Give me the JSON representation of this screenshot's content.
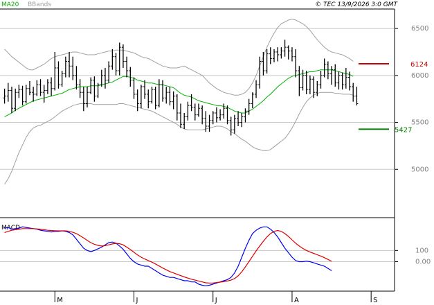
{
  "header": {
    "ma_label": "MA20",
    "bb_label": "BBands",
    "copyright": "© TEC 13/9/2026 3:0 GMT"
  },
  "colors": {
    "background": "#ffffff",
    "axis": "#000000",
    "grid": "#c8c8c8",
    "price_bars": "#000000",
    "ma20": "#00b000",
    "bbands": "#a0a0a0",
    "resistance": "#cc0000",
    "support": "#008000",
    "macd": "#0000ee",
    "signal": "#dd0000"
  },
  "chart_data": [
    {
      "type": "ohlc",
      "panel": "price",
      "ylim": [
        4500,
        6700
      ],
      "y_ticks": [
        5000,
        5500,
        6000,
        6500
      ],
      "y_tick_labels": [
        "5000",
        "5500",
        "6000",
        "6500"
      ],
      "x_ticks": [
        "M",
        "J",
        "J",
        "A",
        "S"
      ],
      "x_tick_index": [
        14,
        36,
        58,
        80,
        102
      ],
      "levels": [
        {
          "label": "6124",
          "value": 6124,
          "role": "resistance"
        },
        {
          "label": "5427",
          "value": 5427,
          "role": "support"
        }
      ],
      "bars": [
        [
          5760,
          5860,
          5700,
          5780
        ],
        [
          5780,
          5920,
          5720,
          5840
        ],
        [
          5840,
          5880,
          5600,
          5650
        ],
        [
          5650,
          5860,
          5620,
          5820
        ],
        [
          5820,
          5900,
          5760,
          5850
        ],
        [
          5850,
          5890,
          5680,
          5720
        ],
        [
          5720,
          5900,
          5700,
          5860
        ],
        [
          5860,
          5940,
          5790,
          5820
        ],
        [
          5820,
          5880,
          5720,
          5800
        ],
        [
          5800,
          5950,
          5780,
          5900
        ],
        [
          5900,
          5960,
          5780,
          5820
        ],
        [
          5820,
          5900,
          5710,
          5840
        ],
        [
          5840,
          5960,
          5800,
          5920
        ],
        [
          5920,
          5980,
          5780,
          5860
        ],
        [
          5860,
          6250,
          5840,
          6080
        ],
        [
          6080,
          6150,
          5860,
          5900
        ],
        [
          5900,
          6050,
          5880,
          6020
        ],
        [
          6020,
          6200,
          5980,
          6150
        ],
        [
          6150,
          6250,
          5980,
          6100
        ],
        [
          6100,
          6200,
          5950,
          6000
        ],
        [
          6000,
          6100,
          5850,
          5900
        ],
        [
          5900,
          5960,
          5760,
          5820
        ],
        [
          5820,
          5880,
          5620,
          5700
        ],
        [
          5700,
          5880,
          5660,
          5820
        ],
        [
          5820,
          5980,
          5800,
          5950
        ],
        [
          5950,
          5990,
          5720,
          5780
        ],
        [
          5780,
          5920,
          5760,
          5900
        ],
        [
          5900,
          6060,
          5880,
          6000
        ],
        [
          6000,
          6080,
          5860,
          5950
        ],
        [
          5950,
          6150,
          5920,
          6100
        ],
        [
          6100,
          6280,
          6060,
          6200
        ],
        [
          6200,
          6240,
          6000,
          6050
        ],
        [
          6050,
          6350,
          6000,
          6300
        ],
        [
          6300,
          6330,
          6080,
          6150
        ],
        [
          6150,
          6200,
          5980,
          6050
        ],
        [
          6050,
          6090,
          5880,
          5950
        ],
        [
          5950,
          5980,
          5750,
          5800
        ],
        [
          5800,
          5850,
          5620,
          5700
        ],
        [
          5700,
          5900,
          5650,
          5880
        ],
        [
          5880,
          5950,
          5750,
          5800
        ],
        [
          5800,
          5850,
          5650,
          5720
        ],
        [
          5720,
          5880,
          5700,
          5850
        ],
        [
          5850,
          5880,
          5640,
          5680
        ],
        [
          5680,
          5960,
          5660,
          5900
        ],
        [
          5900,
          5950,
          5720,
          5760
        ],
        [
          5760,
          5880,
          5700,
          5820
        ],
        [
          5820,
          5880,
          5680,
          5720
        ],
        [
          5720,
          5830,
          5640,
          5780
        ],
        [
          5780,
          5800,
          5520,
          5600
        ],
        [
          5600,
          5700,
          5440,
          5480
        ],
        [
          5480,
          5600,
          5430,
          5560
        ],
        [
          5560,
          5720,
          5520,
          5680
        ],
        [
          5680,
          5800,
          5620,
          5660
        ],
        [
          5660,
          5700,
          5520,
          5580
        ],
        [
          5580,
          5700,
          5560,
          5650
        ],
        [
          5650,
          5680,
          5480,
          5540
        ],
        [
          5540,
          5620,
          5400,
          5460
        ],
        [
          5460,
          5580,
          5400,
          5520
        ],
        [
          5520,
          5620,
          5480,
          5600
        ],
        [
          5600,
          5660,
          5500,
          5550
        ],
        [
          5550,
          5640,
          5520,
          5580
        ],
        [
          5580,
          5700,
          5540,
          5650
        ],
        [
          5650,
          5680,
          5480,
          5520
        ],
        [
          5520,
          5560,
          5360,
          5420
        ],
        [
          5420,
          5580,
          5380,
          5540
        ],
        [
          5540,
          5620,
          5460,
          5500
        ],
        [
          5500,
          5600,
          5450,
          5560
        ],
        [
          5560,
          5650,
          5500,
          5620
        ],
        [
          5620,
          5750,
          5580,
          5700
        ],
        [
          5700,
          5820,
          5650,
          5800
        ],
        [
          5800,
          5950,
          5760,
          5900
        ],
        [
          5900,
          6200,
          5860,
          6150
        ],
        [
          6150,
          6250,
          6000,
          6050
        ],
        [
          6050,
          6280,
          6020,
          6230
        ],
        [
          6230,
          6300,
          6120,
          6180
        ],
        [
          6180,
          6280,
          6140,
          6250
        ],
        [
          6250,
          6300,
          6150,
          6220
        ],
        [
          6220,
          6300,
          6180,
          6260
        ],
        [
          6260,
          6380,
          6200,
          6300
        ],
        [
          6300,
          6320,
          6170,
          6260
        ],
        [
          6260,
          6300,
          6150,
          6200
        ],
        [
          6200,
          6280,
          5980,
          6050
        ],
        [
          6050,
          6100,
          5780,
          5870
        ],
        [
          5870,
          6060,
          5840,
          6000
        ],
        [
          6000,
          6050,
          5800,
          5850
        ],
        [
          5850,
          6000,
          5800,
          5960
        ],
        [
          5960,
          5990,
          5760,
          5820
        ],
        [
          5820,
          5940,
          5780,
          5900
        ],
        [
          5900,
          6050,
          5860,
          6000
        ],
        [
          6000,
          6180,
          5980,
          6120
        ],
        [
          6120,
          6150,
          5960,
          6020
        ],
        [
          6020,
          6100,
          5900,
          6060
        ],
        [
          6060,
          6120,
          5880,
          5920
        ],
        [
          5920,
          6040,
          5850,
          6000
        ],
        [
          6000,
          6030,
          5850,
          5900
        ],
        [
          5900,
          6080,
          5860,
          5980
        ],
        [
          5980,
          6040,
          5840,
          5880
        ],
        [
          5880,
          5920,
          5720,
          5780
        ],
        [
          5780,
          5880,
          5680,
          5700
        ]
      ],
      "ma20": [
        5560,
        5580,
        5600,
        5630,
        5650,
        5670,
        5690,
        5710,
        5730,
        5740,
        5750,
        5760,
        5770,
        5780,
        5790,
        5800,
        5810,
        5830,
        5850,
        5860,
        5870,
        5880,
        5880,
        5880,
        5890,
        5890,
        5890,
        5900,
        5910,
        5920,
        5930,
        5950,
        5970,
        5990,
        5990,
        5980,
        5970,
        5950,
        5940,
        5930,
        5920,
        5920,
        5910,
        5900,
        5900,
        5890,
        5880,
        5870,
        5840,
        5810,
        5790,
        5780,
        5770,
        5750,
        5730,
        5720,
        5710,
        5700,
        5690,
        5680,
        5680,
        5670,
        5660,
        5640,
        5620,
        5610,
        5600,
        5600,
        5620,
        5640,
        5670,
        5700,
        5730,
        5770,
        5800,
        5840,
        5880,
        5910,
        5940,
        5970,
        5990,
        6000,
        6010,
        6020,
        6030,
        6040,
        6040,
        6050,
        6060,
        6060,
        6060,
        6060,
        6050,
        6040,
        6030,
        6020,
        6010,
        5990
      ],
      "bb_upper": [
        6280,
        6240,
        6200,
        6170,
        6140,
        6110,
        6080,
        6060,
        6060,
        6080,
        6100,
        6120,
        6150,
        6180,
        6200,
        6210,
        6220,
        6230,
        6240,
        6250,
        6250,
        6240,
        6230,
        6220,
        6220,
        6220,
        6230,
        6240,
        6250,
        6260,
        6260,
        6270,
        6270,
        6270,
        6260,
        6250,
        6240,
        6220,
        6200,
        6190,
        6180,
        6160,
        6140,
        6120,
        6100,
        6090,
        6080,
        6080,
        6080,
        6090,
        6100,
        6080,
        6060,
        6040,
        6020,
        6000,
        5960,
        5920,
        5890,
        5860,
        5840,
        5820,
        5810,
        5800,
        5790,
        5790,
        5800,
        5820,
        5860,
        5920,
        6000,
        6100,
        6200,
        6300,
        6380,
        6450,
        6510,
        6550,
        6570,
        6590,
        6600,
        6590,
        6570,
        6550,
        6520,
        6480,
        6430,
        6380,
        6340,
        6300,
        6270,
        6250,
        6240,
        6230,
        6220,
        6200,
        6180,
        6150
      ],
      "bb_lower": [
        4840,
        4900,
        4980,
        5080,
        5180,
        5260,
        5340,
        5400,
        5440,
        5460,
        5470,
        5490,
        5510,
        5530,
        5560,
        5590,
        5620,
        5640,
        5660,
        5680,
        5690,
        5700,
        5700,
        5700,
        5700,
        5690,
        5690,
        5690,
        5690,
        5690,
        5690,
        5690,
        5700,
        5700,
        5690,
        5680,
        5670,
        5660,
        5650,
        5640,
        5630,
        5620,
        5600,
        5580,
        5560,
        5540,
        5520,
        5500,
        5480,
        5450,
        5430,
        5420,
        5420,
        5420,
        5420,
        5420,
        5430,
        5440,
        5450,
        5460,
        5460,
        5450,
        5430,
        5400,
        5380,
        5350,
        5320,
        5300,
        5270,
        5240,
        5220,
        5210,
        5200,
        5200,
        5210,
        5240,
        5270,
        5300,
        5330,
        5380,
        5440,
        5510,
        5590,
        5660,
        5720,
        5760,
        5790,
        5810,
        5820,
        5820,
        5820,
        5820,
        5810,
        5810,
        5800,
        5800,
        5800,
        5790
      ]
    },
    {
      "type": "line",
      "panel": "macd",
      "title": "MACD",
      "ylim": [
        -250,
        380
      ],
      "y_ticks": [
        0,
        100
      ],
      "y_tick_labels": [
        "0.00",
        "100"
      ],
      "series": [
        {
          "values": [
            300,
            305,
            290,
            295,
            300,
            310,
            305,
            300,
            295,
            290,
            280,
            275,
            270,
            265,
            270,
            270,
            275,
            270,
            260,
            240,
            200,
            160,
            120,
            100,
            90,
            100,
            115,
            130,
            150,
            170,
            175,
            165,
            140,
            110,
            70,
            30,
            0,
            -20,
            -30,
            -40,
            -40,
            -60,
            -80,
            -100,
            -120,
            -130,
            -140,
            -140,
            -150,
            -160,
            -170,
            -170,
            -180,
            -180,
            -200,
            -210,
            -215,
            -210,
            -200,
            -190,
            -180,
            -170,
            -160,
            -140,
            -100,
            -40,
            40,
            120,
            190,
            250,
            280,
            300,
            310,
            310,
            290,
            260,
            220,
            170,
            120,
            80,
            40,
            10,
            0,
            0,
            5,
            0,
            -10,
            -20,
            -30,
            -40,
            -60,
            -80
          ]
        },
        {
          "values": [
            260,
            270,
            280,
            285,
            290,
            295,
            295,
            295,
            295,
            292,
            290,
            285,
            280,
            278,
            276,
            275,
            275,
            275,
            270,
            262,
            250,
            232,
            212,
            190,
            170,
            155,
            145,
            140,
            143,
            150,
            158,
            163,
            160,
            150,
            130,
            108,
            84,
            60,
            40,
            24,
            10,
            -4,
            -20,
            -38,
            -56,
            -72,
            -88,
            -100,
            -112,
            -124,
            -136,
            -146,
            -156,
            -164,
            -172,
            -180,
            -188,
            -190,
            -190,
            -186,
            -182,
            -178,
            -172,
            -164,
            -150,
            -126,
            -90,
            -46,
            0,
            48,
            96,
            140,
            182,
            220,
            250,
            270,
            278,
            270,
            250,
            225,
            195,
            165,
            140,
            118,
            100,
            86,
            74,
            62,
            50,
            36,
            20,
            4
          ]
        }
      ]
    }
  ]
}
